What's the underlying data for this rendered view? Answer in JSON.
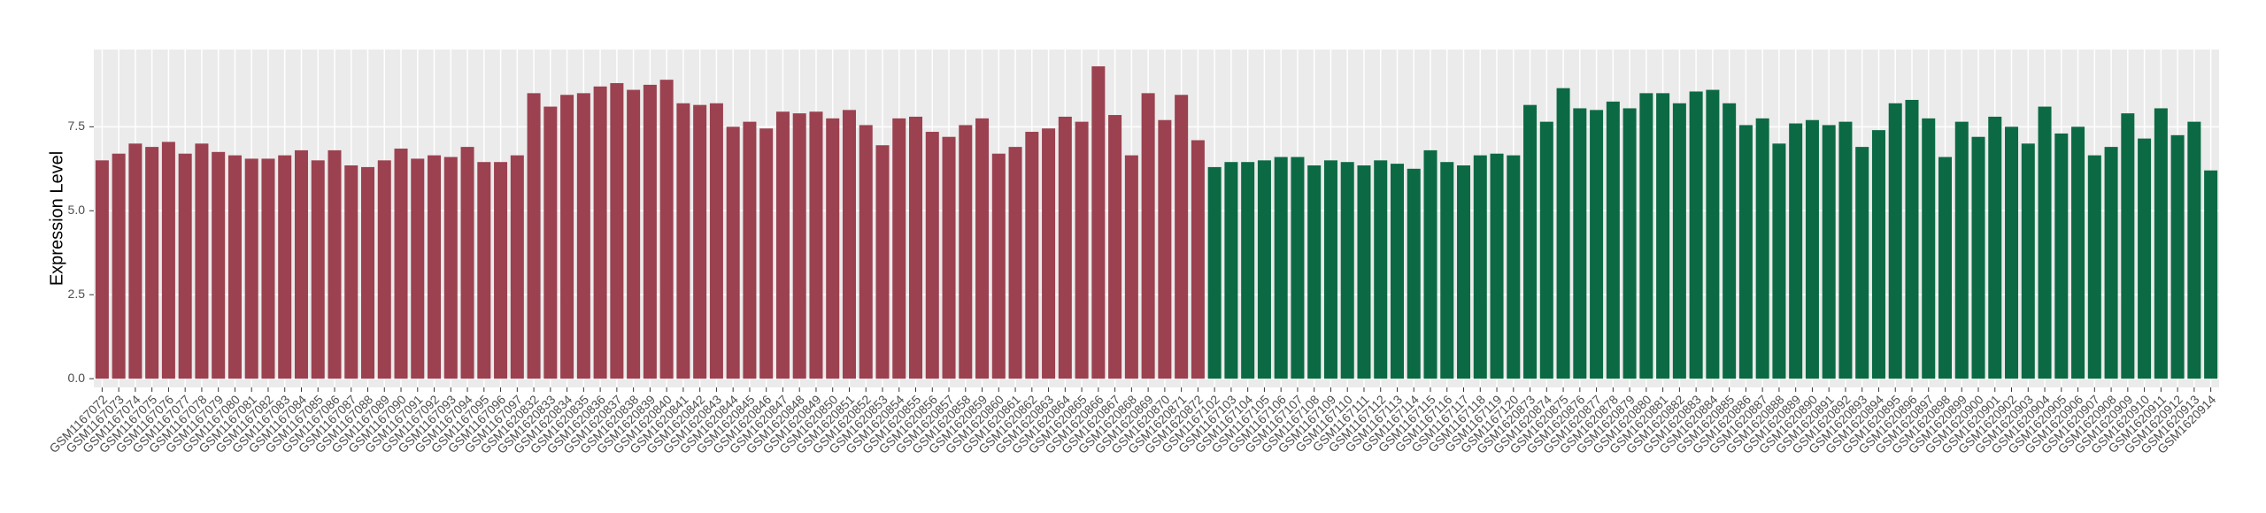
{
  "chart_data": {
    "type": "bar",
    "y_label": "Expression Level",
    "categories": [
      "GSM1167072",
      "GSM1167073",
      "GSM1167074",
      "GSM1167075",
      "GSM1167076",
      "GSM1167077",
      "GSM1167078",
      "GSM1167079",
      "GSM1167080",
      "GSM1167081",
      "GSM1167082",
      "GSM1167083",
      "GSM1167084",
      "GSM1167085",
      "GSM1167086",
      "GSM1167087",
      "GSM1167088",
      "GSM1167089",
      "GSM1167090",
      "GSM1167091",
      "GSM1167092",
      "GSM1167093",
      "GSM1167094",
      "GSM1167095",
      "GSM1167096",
      "GSM1167097",
      "GSM1620832",
      "GSM1620833",
      "GSM1620834",
      "GSM1620835",
      "GSM1620836",
      "GSM1620837",
      "GSM1620838",
      "GSM1620839",
      "GSM1620840",
      "GSM1620841",
      "GSM1620842",
      "GSM1620843",
      "GSM1620844",
      "GSM1620845",
      "GSM1620846",
      "GSM1620847",
      "GSM1620848",
      "GSM1620849",
      "GSM1620850",
      "GSM1620851",
      "GSM1620852",
      "GSM1620853",
      "GSM1620854",
      "GSM1620855",
      "GSM1620856",
      "GSM1620857",
      "GSM1620858",
      "GSM1620859",
      "GSM1620860",
      "GSM1620861",
      "GSM1620862",
      "GSM1620863",
      "GSM1620864",
      "GSM1620865",
      "GSM1620866",
      "GSM1620867",
      "GSM1620868",
      "GSM1620869",
      "GSM1620870",
      "GSM1620871",
      "GSM1620872",
      "GSM1167102",
      "GSM1167103",
      "GSM1167104",
      "GSM1167105",
      "GSM1167106",
      "GSM1167107",
      "GSM1167108",
      "GSM1167109",
      "GSM1167110",
      "GSM1167111",
      "GSM1167112",
      "GSM1167113",
      "GSM1167114",
      "GSM1167115",
      "GSM1167116",
      "GSM1167117",
      "GSM1167118",
      "GSM1167119",
      "GSM1167120",
      "GSM1620873",
      "GSM1620874",
      "GSM1620875",
      "GSM1620876",
      "GSM1620877",
      "GSM1620878",
      "GSM1620879",
      "GSM1620880",
      "GSM1620881",
      "GSM1620882",
      "GSM1620883",
      "GSM1620884",
      "GSM1620885",
      "GSM1620886",
      "GSM1620887",
      "GSM1620888",
      "GSM1620889",
      "GSM1620890",
      "GSM1620891",
      "GSM1620892",
      "GSM1620893",
      "GSM1620894",
      "GSM1620895",
      "GSM1620896",
      "GSM1620897",
      "GSM1620898",
      "GSM1620899",
      "GSM1620900",
      "GSM1620901",
      "GSM1620902",
      "GSM1620903",
      "GSM1620904",
      "GSM1620905",
      "GSM1620906",
      "GSM1620907",
      "GSM1620908",
      "GSM1620909",
      "GSM1620910",
      "GSM1620911",
      "GSM1620912",
      "GSM1620913",
      "GSM1620914"
    ],
    "series": [
      {
        "color": "#9b4150",
        "values": [
          6.5,
          6.7,
          7.0,
          6.9,
          7.05,
          6.7,
          7.0,
          6.75,
          6.65,
          6.55,
          6.55,
          6.65,
          6.8,
          6.5,
          6.8,
          6.35,
          6.3,
          6.5,
          6.85,
          6.55,
          6.65,
          6.6,
          6.9,
          6.45,
          6.45,
          6.65,
          8.5,
          8.1,
          8.45,
          8.5,
          8.7,
          8.8,
          8.6,
          8.75,
          8.9,
          8.2,
          8.15,
          8.2,
          7.5,
          7.65,
          7.45,
          7.95,
          7.9,
          7.95,
          7.75,
          8.0,
          7.55,
          6.95,
          7.75,
          7.8,
          7.35,
          7.2,
          7.55,
          7.75,
          6.7,
          6.9,
          7.35,
          7.45,
          7.8,
          7.65,
          9.3,
          7.85,
          6.65,
          8.5,
          7.7,
          8.45,
          7.1,
          null,
          null,
          null,
          null,
          null,
          null,
          null,
          null,
          null,
          null,
          null,
          null,
          null,
          null,
          null,
          null,
          null,
          null,
          null,
          null,
          null,
          null,
          null,
          null,
          null,
          null,
          null,
          null,
          null,
          null,
          null,
          null,
          null,
          null,
          null,
          null,
          null,
          null,
          null,
          null,
          null,
          null,
          null,
          null,
          null,
          null,
          null,
          null,
          null,
          null,
          null,
          null,
          null,
          null,
          null,
          null,
          null,
          null,
          null,
          null,
          null
        ]
      },
      {
        "color": "#0b6a44",
        "values": [
          null,
          null,
          null,
          null,
          null,
          null,
          null,
          null,
          null,
          null,
          null,
          null,
          null,
          null,
          null,
          null,
          null,
          null,
          null,
          null,
          null,
          null,
          null,
          null,
          null,
          null,
          null,
          null,
          null,
          null,
          null,
          null,
          null,
          null,
          null,
          null,
          null,
          null,
          null,
          null,
          null,
          null,
          null,
          null,
          null,
          null,
          null,
          null,
          null,
          null,
          null,
          null,
          null,
          null,
          null,
          null,
          null,
          null,
          null,
          null,
          null,
          null,
          null,
          null,
          null,
          null,
          null,
          6.3,
          6.45,
          6.45,
          6.5,
          6.6,
          6.6,
          6.35,
          6.5,
          6.45,
          6.35,
          6.5,
          6.4,
          6.25,
          6.8,
          6.45,
          6.35,
          6.65,
          6.7,
          6.65,
          8.15,
          7.65,
          8.65,
          8.05,
          8.0,
          8.25,
          8.05,
          8.5,
          8.5,
          8.2,
          8.55,
          8.6,
          8.2,
          7.55,
          7.75,
          7.0,
          7.6,
          7.7,
          7.55,
          7.65,
          6.9,
          7.4,
          8.2,
          8.3,
          7.75,
          6.6,
          7.65,
          7.2,
          7.8,
          7.5,
          7.0,
          8.1,
          7.3,
          7.5,
          6.65,
          6.9,
          7.9,
          7.15,
          8.05,
          7.25,
          7.65,
          6.2
        ]
      }
    ],
    "ylim": [
      -0.26,
      9.8
    ],
    "yticks": [
      {
        "value": 0,
        "label": "0.0"
      },
      2.5,
      {
        "value": 5,
        "label": "5.0"
      },
      7.5
    ],
    "grid": true
  }
}
